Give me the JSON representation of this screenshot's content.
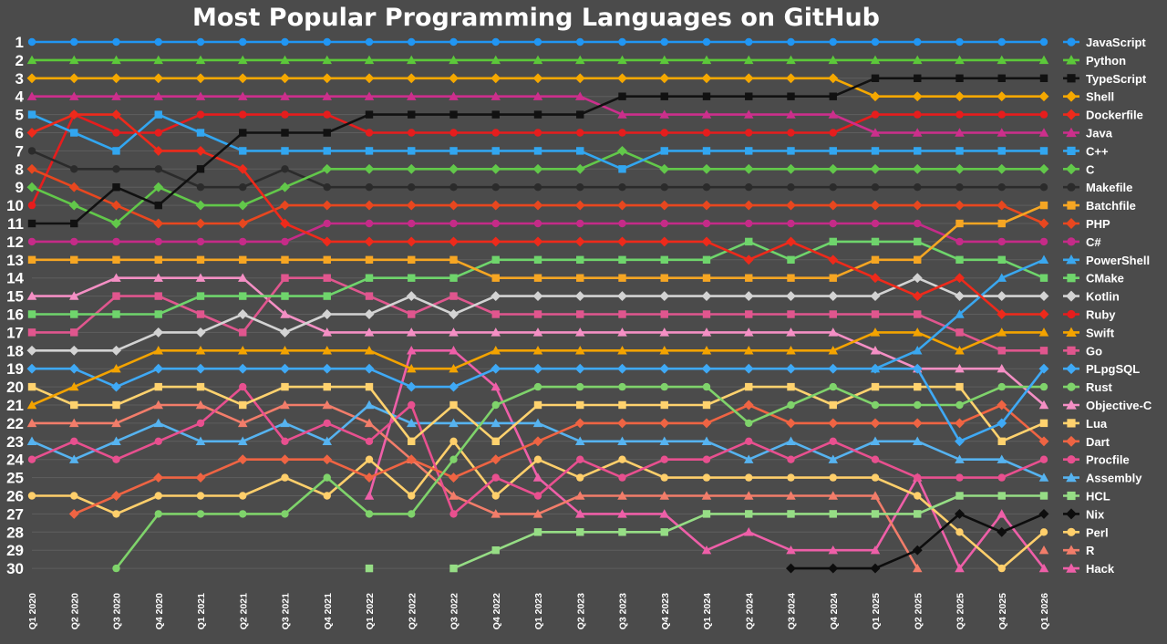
{
  "chart_data": {
    "type": "line",
    "title": "Most Popular Programming Languages on GitHub",
    "xlabel": "",
    "ylabel": "",
    "x": [
      "Q1 2020",
      "Q2 2020",
      "Q3 2020",
      "Q4 2020",
      "Q1 2021",
      "Q2 2021",
      "Q3 2021",
      "Q4 2021",
      "Q1 2022",
      "Q2 2022",
      "Q3 2022",
      "Q4 2022",
      "Q1 2023",
      "Q2 2023",
      "Q3 2023",
      "Q4 2023",
      "Q1 2024",
      "Q2 2024",
      "Q3 2024",
      "Q4 2024",
      "Q1 2025",
      "Q2 2025",
      "Q3 2025",
      "Q4 2025",
      "Q1 2026"
    ],
    "ylim": [
      30,
      1
    ],
    "y_axis": "inverted rank",
    "rank_ticks": [
      1,
      2,
      3,
      4,
      5,
      6,
      7,
      8,
      9,
      10,
      11,
      12,
      13,
      14,
      15,
      16,
      17,
      18,
      19,
      20,
      21,
      22,
      23,
      24,
      25,
      26,
      27,
      28,
      29,
      30
    ],
    "grid": true,
    "legend": "right",
    "series": [
      {
        "name": "JavaScript",
        "color": "#2196f3",
        "marker": "circle",
        "values": [
          1,
          1,
          1,
          1,
          1,
          1,
          1,
          1,
          1,
          1,
          1,
          1,
          1,
          1,
          1,
          1,
          1,
          1,
          1,
          1,
          1,
          1,
          1,
          1,
          1
        ]
      },
      {
        "name": "Python",
        "color": "#5cc83a",
        "marker": "triangle",
        "values": [
          2,
          2,
          2,
          2,
          2,
          2,
          2,
          2,
          2,
          2,
          2,
          2,
          2,
          2,
          2,
          2,
          2,
          2,
          2,
          2,
          2,
          2,
          2,
          2,
          2
        ]
      },
      {
        "name": "TypeScript",
        "color": "#111111",
        "marker": "square",
        "values": [
          11,
          11,
          9,
          10,
          8,
          6,
          6,
          6,
          5,
          5,
          5,
          5,
          5,
          5,
          4,
          4,
          4,
          4,
          4,
          4,
          3,
          3,
          3,
          3,
          3
        ]
      },
      {
        "name": "Shell",
        "color": "#f5a800",
        "marker": "diamond",
        "values": [
          3,
          3,
          3,
          3,
          3,
          3,
          3,
          3,
          3,
          3,
          3,
          3,
          3,
          3,
          3,
          3,
          3,
          3,
          3,
          3,
          4,
          4,
          4,
          4,
          4
        ]
      },
      {
        "name": "Dockerfile",
        "color": "#ee2a1b",
        "marker": "diamond",
        "values": [
          6,
          5,
          5,
          7,
          7,
          8,
          11,
          12,
          12,
          12,
          12,
          12,
          12,
          12,
          12,
          12,
          12,
          13,
          12,
          13,
          14,
          15,
          14,
          16,
          16
        ]
      },
      {
        "name": "Java",
        "color": "#cc2f8c",
        "marker": "triangle",
        "values": [
          4,
          4,
          4,
          4,
          4,
          4,
          4,
          4,
          4,
          4,
          4,
          4,
          4,
          4,
          5,
          5,
          5,
          5,
          5,
          5,
          6,
          6,
          6,
          6,
          6
        ]
      },
      {
        "name": "C++",
        "color": "#32a6f0",
        "marker": "square",
        "values": [
          5,
          6,
          7,
          5,
          6,
          7,
          7,
          7,
          7,
          7,
          7,
          7,
          7,
          7,
          8,
          7,
          7,
          7,
          7,
          7,
          7,
          7,
          7,
          7,
          7
        ]
      },
      {
        "name": "C",
        "color": "#62c84a",
        "marker": "diamond",
        "values": [
          9,
          10,
          11,
          9,
          10,
          10,
          9,
          8,
          8,
          8,
          8,
          8,
          8,
          8,
          7,
          8,
          8,
          8,
          8,
          8,
          8,
          8,
          8,
          8,
          8
        ]
      },
      {
        "name": "Makefile",
        "color": "#2b2b2b",
        "marker": "circle",
        "values": [
          7,
          8,
          8,
          8,
          9,
          9,
          8,
          9,
          9,
          9,
          9,
          9,
          9,
          9,
          9,
          9,
          9,
          9,
          9,
          9,
          9,
          9,
          9,
          9,
          9
        ]
      },
      {
        "name": "Batchfile",
        "color": "#f6a623",
        "marker": "square",
        "values": [
          13,
          13,
          13,
          13,
          13,
          13,
          13,
          13,
          13,
          13,
          13,
          14,
          14,
          14,
          14,
          14,
          14,
          14,
          14,
          14,
          13,
          13,
          11,
          11,
          10
        ]
      },
      {
        "name": "PHP",
        "color": "#e8471f",
        "marker": "diamond",
        "values": [
          8,
          9,
          10,
          11,
          11,
          11,
          10,
          10,
          10,
          10,
          10,
          10,
          10,
          10,
          10,
          10,
          10,
          10,
          10,
          10,
          10,
          10,
          10,
          10,
          11
        ]
      },
      {
        "name": "C#",
        "color": "#c52b88",
        "marker": "circle",
        "values": [
          12,
          12,
          12,
          12,
          12,
          12,
          12,
          11,
          11,
          11,
          11,
          11,
          11,
          11,
          11,
          11,
          11,
          11,
          11,
          11,
          11,
          11,
          12,
          12,
          12
        ]
      },
      {
        "name": "PowerShell",
        "color": "#3aa7ef",
        "marker": "triangle",
        "values": [
          null,
          null,
          null,
          null,
          null,
          null,
          null,
          null,
          null,
          null,
          null,
          null,
          null,
          null,
          null,
          null,
          null,
          null,
          null,
          null,
          19,
          18,
          16,
          14,
          13
        ]
      },
      {
        "name": "CMake",
        "color": "#6fd56c",
        "marker": "square",
        "values": [
          16,
          16,
          16,
          16,
          15,
          15,
          15,
          15,
          14,
          14,
          14,
          13,
          13,
          13,
          13,
          13,
          13,
          12,
          13,
          12,
          12,
          12,
          13,
          13,
          14
        ]
      },
      {
        "name": "Kotlin",
        "color": "#d3d3d3",
        "marker": "diamond",
        "values": [
          18,
          18,
          18,
          17,
          17,
          16,
          17,
          16,
          16,
          15,
          16,
          15,
          15,
          15,
          15,
          15,
          15,
          15,
          15,
          15,
          15,
          14,
          15,
          15,
          15
        ]
      },
      {
        "name": "Ruby",
        "color": "#e61d1d",
        "marker": "circle",
        "values": [
          10,
          5,
          6,
          6,
          5,
          5,
          5,
          5,
          6,
          6,
          6,
          6,
          6,
          6,
          6,
          6,
          6,
          6,
          6,
          6,
          5,
          5,
          5,
          5,
          5
        ]
      },
      {
        "name": "Swift",
        "color": "#f3a300",
        "marker": "triangle",
        "values": [
          21,
          20,
          19,
          18,
          18,
          18,
          18,
          18,
          18,
          19,
          19,
          18,
          18,
          18,
          18,
          18,
          18,
          18,
          18,
          18,
          17,
          17,
          18,
          17,
          17
        ]
      },
      {
        "name": "Go",
        "color": "#e0568e",
        "marker": "square",
        "values": [
          17,
          17,
          15,
          15,
          16,
          17,
          14,
          14,
          15,
          16,
          15,
          16,
          16,
          16,
          16,
          16,
          16,
          16,
          16,
          16,
          16,
          16,
          17,
          18,
          18
        ]
      },
      {
        "name": "PLpgSQL",
        "color": "#3fa9f5",
        "marker": "diamond",
        "values": [
          19,
          19,
          20,
          19,
          19,
          19,
          19,
          19,
          19,
          20,
          20,
          19,
          19,
          19,
          19,
          19,
          19,
          19,
          19,
          19,
          19,
          19,
          23,
          22,
          19
        ]
      },
      {
        "name": "Rust",
        "color": "#7fd36b",
        "marker": "circle",
        "values": [
          null,
          null,
          30,
          27,
          27,
          27,
          27,
          25,
          27,
          27,
          24,
          21,
          20,
          20,
          20,
          20,
          20,
          22,
          21,
          20,
          21,
          21,
          21,
          20,
          20
        ]
      },
      {
        "name": "Objective-C",
        "color": "#f48fc4",
        "marker": "triangle",
        "values": [
          15,
          15,
          14,
          14,
          14,
          14,
          16,
          17,
          17,
          17,
          17,
          17,
          17,
          17,
          17,
          17,
          17,
          17,
          17,
          17,
          18,
          19,
          19,
          19,
          21
        ]
      },
      {
        "name": "Lua",
        "color": "#ffd26e",
        "marker": "square",
        "values": [
          20,
          21,
          21,
          20,
          20,
          21,
          20,
          20,
          20,
          23,
          21,
          23,
          21,
          21,
          21,
          21,
          21,
          20,
          20,
          21,
          20,
          20,
          20,
          23,
          22
        ]
      },
      {
        "name": "Dart",
        "color": "#ef6443",
        "marker": "diamond",
        "values": [
          null,
          27,
          26,
          25,
          25,
          24,
          24,
          24,
          25,
          24,
          25,
          24,
          23,
          22,
          22,
          22,
          22,
          21,
          22,
          22,
          22,
          22,
          22,
          21,
          23
        ]
      },
      {
        "name": "Procfile",
        "color": "#e8508f",
        "marker": "circle",
        "values": [
          24,
          23,
          24,
          23,
          22,
          20,
          23,
          22,
          23,
          21,
          27,
          25,
          26,
          24,
          25,
          24,
          24,
          23,
          24,
          23,
          24,
          25,
          25,
          25,
          24
        ]
      },
      {
        "name": "Assembly",
        "color": "#56b3f0",
        "marker": "triangle",
        "values": [
          23,
          24,
          23,
          22,
          23,
          23,
          22,
          23,
          21,
          22,
          22,
          22,
          22,
          23,
          23,
          23,
          23,
          24,
          23,
          24,
          23,
          23,
          24,
          24,
          25
        ]
      },
      {
        "name": "HCL",
        "color": "#96dd85",
        "marker": "square",
        "values": [
          null,
          null,
          null,
          null,
          null,
          null,
          null,
          null,
          30,
          null,
          30,
          29,
          28,
          28,
          28,
          28,
          27,
          27,
          27,
          27,
          27,
          27,
          26,
          26,
          26
        ]
      },
      {
        "name": "Nix",
        "color": "#0d0d0d",
        "marker": "diamond",
        "values": [
          null,
          null,
          null,
          null,
          null,
          null,
          null,
          null,
          null,
          null,
          null,
          null,
          null,
          null,
          null,
          null,
          null,
          null,
          30,
          30,
          30,
          29,
          27,
          28,
          27
        ]
      },
      {
        "name": "Perl",
        "color": "#ffcf6b",
        "marker": "circle",
        "values": [
          26,
          26,
          27,
          26,
          26,
          26,
          25,
          26,
          24,
          26,
          23,
          26,
          24,
          25,
          24,
          25,
          25,
          25,
          25,
          25,
          25,
          26,
          28,
          30,
          28
        ]
      },
      {
        "name": "R",
        "color": "#f27d6a",
        "marker": "triangle",
        "values": [
          22,
          22,
          22,
          21,
          21,
          22,
          21,
          21,
          22,
          24,
          26,
          27,
          27,
          26,
          26,
          26,
          26,
          26,
          26,
          26,
          26,
          30,
          null,
          null,
          29
        ]
      },
      {
        "name": "Hack",
        "color": "#ee5fa8",
        "marker": "triangle",
        "values": [
          null,
          null,
          null,
          null,
          null,
          null,
          null,
          null,
          26,
          18,
          18,
          20,
          25,
          27,
          27,
          27,
          29,
          28,
          29,
          29,
          29,
          25,
          30,
          27,
          30
        ]
      }
    ]
  }
}
